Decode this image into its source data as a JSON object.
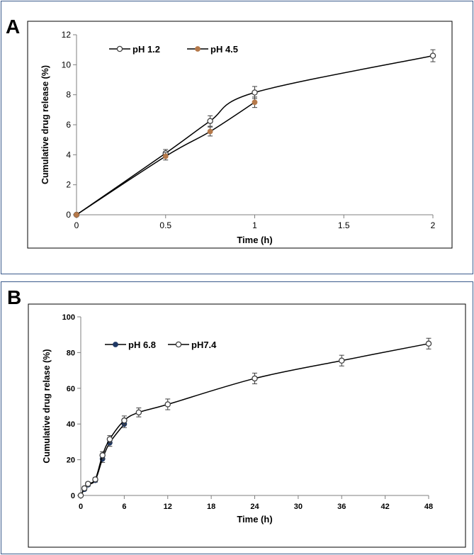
{
  "panels": {
    "A": {
      "letter": "A"
    },
    "B": {
      "letter": "B"
    }
  },
  "chart_data": [
    {
      "type": "line",
      "panel": "A",
      "title": "",
      "xlabel": "Time (h)",
      "ylabel": "Cumulative drug release (%)",
      "xlim": [
        0,
        2
      ],
      "ylim": [
        0,
        12
      ],
      "xticks": [
        0,
        0.5,
        1,
        1.5,
        2
      ],
      "xtick_labels": [
        "0",
        "0.5",
        "1",
        "1.5",
        "2"
      ],
      "yticks": [
        0,
        2,
        4,
        6,
        8,
        10,
        12
      ],
      "ytick_labels": [
        "0",
        "2",
        "4",
        "6",
        "8",
        "10",
        "12"
      ],
      "legend_position": "top-left",
      "series": [
        {
          "name": "pH 1.2",
          "marker": "open-circle",
          "color": "#404040",
          "x": [
            0,
            0.5,
            0.75,
            1,
            2
          ],
          "y": [
            0,
            4.1,
            6.25,
            8.15,
            10.6
          ],
          "err": [
            0,
            0.25,
            0.35,
            0.4,
            0.4
          ]
        },
        {
          "name": "pH 4.5",
          "marker": "filled-circle",
          "color": "#b5794a",
          "x": [
            0,
            0.5,
            0.75,
            1
          ],
          "y": [
            0,
            3.9,
            5.55,
            7.5
          ],
          "err": [
            0,
            0.25,
            0.3,
            0.35
          ]
        }
      ]
    },
    {
      "type": "line",
      "panel": "B",
      "title": "",
      "xlabel": "Time (h)",
      "ylabel": "Cumulative drug relase (%)",
      "xlim": [
        0,
        48
      ],
      "ylim": [
        0,
        100
      ],
      "xticks": [
        0,
        6,
        12,
        18,
        24,
        30,
        36,
        42,
        48
      ],
      "xtick_labels": [
        "0",
        "6",
        "12",
        "18",
        "24",
        "30",
        "36",
        "42",
        "48"
      ],
      "yticks": [
        0,
        20,
        40,
        60,
        80,
        100
      ],
      "ytick_labels": [
        "0",
        "20",
        "40",
        "60",
        "80",
        "100"
      ],
      "legend_position": "top-left",
      "series": [
        {
          "name": "pH 6.8",
          "marker": "filled-circle",
          "color": "#1f3864",
          "x": [
            0,
            0.5,
            1,
            2,
            3,
            4,
            6
          ],
          "y": [
            0,
            3.5,
            6,
            8.5,
            20.5,
            29.5,
            40
          ],
          "err": [
            0,
            0.8,
            0.8,
            1,
            2,
            2,
            2
          ]
        },
        {
          "name": "pH7.4",
          "marker": "open-circle",
          "color": "#404040",
          "x": [
            0,
            0.5,
            1,
            2,
            3,
            4,
            6,
            8,
            12,
            24,
            36,
            48
          ],
          "y": [
            0,
            4,
            6.5,
            9,
            22.5,
            31.5,
            42,
            46.5,
            51,
            65.5,
            75.5,
            85
          ],
          "err": [
            0,
            1,
            1,
            1,
            2,
            2,
            2.5,
            2.5,
            3,
            3,
            3,
            3
          ]
        }
      ]
    }
  ]
}
